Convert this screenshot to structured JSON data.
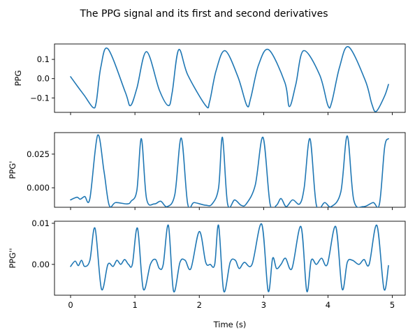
{
  "chart_data": {
    "type": "line",
    "title": "The PPG signal and its first and second derivatives",
    "xlabel": "Time (s)",
    "xlim": [
      -0.25,
      5.2
    ],
    "xticks": [
      0,
      1,
      2,
      3,
      4,
      5
    ],
    "sharex": true,
    "grid": false,
    "line_color": "#1f77b4",
    "subplots": [
      {
        "ylabel": "PPG",
        "ylim": [
          -0.175,
          0.18
        ],
        "yticks": [
          {
            "value": 0.1,
            "label": "0.1"
          },
          {
            "value": 0.0,
            "label": "0.0"
          },
          {
            "value": -0.1,
            "label": "−0.1"
          }
        ],
        "x": [
          0.0,
          0.13,
          0.22,
          0.35,
          0.4,
          0.47,
          0.58,
          0.85,
          0.93,
          1.03,
          1.18,
          1.38,
          1.52,
          1.58,
          1.68,
          1.82,
          2.1,
          2.16,
          2.26,
          2.4,
          2.6,
          2.74,
          2.8,
          2.92,
          3.08,
          3.33,
          3.4,
          3.5,
          3.62,
          3.87,
          4.0,
          4.06,
          4.18,
          4.32,
          4.58,
          4.68,
          4.75,
          4.88,
          4.94
        ],
        "y": [
          0.01,
          -0.05,
          -0.09,
          -0.15,
          -0.12,
          0.06,
          0.155,
          -0.07,
          -0.14,
          -0.05,
          0.14,
          -0.06,
          -0.14,
          -0.07,
          0.15,
          0.02,
          -0.14,
          -0.12,
          0.04,
          0.145,
          0.01,
          -0.14,
          -0.1,
          0.07,
          0.15,
          -0.02,
          -0.145,
          -0.03,
          0.145,
          0.02,
          -0.14,
          -0.12,
          0.06,
          0.165,
          -0.01,
          -0.13,
          -0.17,
          -0.09,
          -0.03
        ]
      },
      {
        "ylabel": "PPG'",
        "ylim": [
          -0.0145,
          0.041
        ],
        "yticks": [
          {
            "value": 0.025,
            "label": "0.025"
          },
          {
            "value": 0.0,
            "label": "0.000"
          }
        ],
        "x": [
          0.0,
          0.1,
          0.15,
          0.22,
          0.3,
          0.42,
          0.52,
          0.6,
          0.7,
          0.88,
          0.94,
          1.03,
          1.1,
          1.18,
          1.3,
          1.4,
          1.5,
          1.62,
          1.72,
          1.82,
          1.92,
          2.1,
          2.2,
          2.3,
          2.36,
          2.44,
          2.55,
          2.65,
          2.73,
          2.87,
          2.99,
          3.1,
          3.2,
          3.27,
          3.35,
          3.45,
          3.56,
          3.63,
          3.72,
          3.82,
          3.95,
          4.05,
          4.2,
          4.3,
          4.4,
          4.55,
          4.7,
          4.8,
          4.88,
          4.94
        ],
        "y": [
          -0.009,
          -0.007,
          -0.0085,
          -0.0065,
          -0.008,
          0.039,
          0.012,
          -0.013,
          -0.011,
          -0.012,
          -0.01,
          -0.002,
          0.0365,
          -0.008,
          -0.012,
          -0.01,
          -0.014,
          -0.005,
          0.037,
          -0.012,
          -0.011,
          -0.013,
          -0.012,
          0.0,
          0.0375,
          -0.012,
          -0.009,
          -0.013,
          -0.012,
          0.002,
          0.0375,
          -0.012,
          -0.013,
          -0.008,
          -0.014,
          -0.009,
          -0.012,
          0.0,
          0.0365,
          -0.013,
          -0.011,
          -0.014,
          -0.003,
          0.0385,
          -0.009,
          -0.014,
          -0.011,
          -0.012,
          0.03,
          0.0365
        ]
      },
      {
        "ylabel": "PPG''",
        "ylim": [
          -0.0075,
          0.0105
        ],
        "yticks": [
          {
            "value": 0.01,
            "label": "0.01"
          },
          {
            "value": 0.0,
            "label": "0.00"
          }
        ],
        "x": [
          0.0,
          0.07,
          0.12,
          0.17,
          0.22,
          0.3,
          0.38,
          0.48,
          0.58,
          0.66,
          0.72,
          0.78,
          0.84,
          0.9,
          0.96,
          1.04,
          1.13,
          1.24,
          1.32,
          1.38,
          1.44,
          1.52,
          1.6,
          1.7,
          1.78,
          1.87,
          2.0,
          2.1,
          2.17,
          2.24,
          2.3,
          2.38,
          2.48,
          2.56,
          2.62,
          2.7,
          2.82,
          2.97,
          3.07,
          3.14,
          3.2,
          3.27,
          3.34,
          3.44,
          3.58,
          3.67,
          3.74,
          3.82,
          3.9,
          3.99,
          4.12,
          4.22,
          4.3,
          4.38,
          4.48,
          4.56,
          4.64,
          4.76,
          4.87,
          4.94
        ],
        "y": [
          -0.0005,
          0.0008,
          -0.0003,
          0.001,
          -0.0005,
          0.001,
          0.0088,
          -0.006,
          0.0,
          -0.0005,
          0.001,
          0.0,
          0.0012,
          0.0,
          0.0,
          0.0088,
          -0.006,
          0.0,
          0.0012,
          -0.001,
          0.0,
          0.0095,
          -0.0065,
          0.0005,
          0.001,
          -0.001,
          0.008,
          0.0005,
          0.0,
          0.0,
          0.0095,
          -0.0065,
          0.0005,
          0.001,
          -0.001,
          0.0005,
          0.0,
          0.0098,
          -0.0065,
          0.0015,
          -0.001,
          0.0,
          0.0015,
          -0.001,
          0.0092,
          -0.0065,
          0.001,
          0.0,
          0.0015,
          0.0,
          0.0092,
          -0.006,
          0.0005,
          0.001,
          0.0,
          0.0012,
          0.0,
          0.0095,
          -0.006,
          -0.0003
        ]
      }
    ]
  }
}
